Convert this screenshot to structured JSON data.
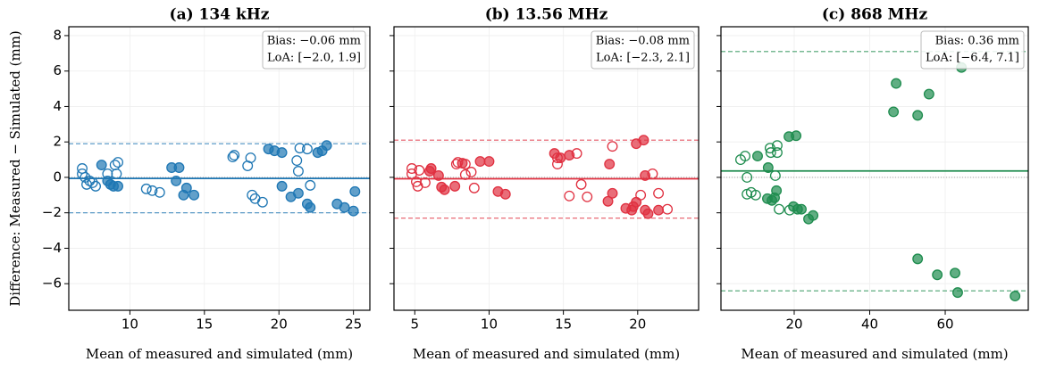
{
  "y_label": "Difference: Measured − Simulated (mm)",
  "chart_data": [
    {
      "type": "scatter",
      "title": "(a) 134 kHz",
      "x_label": "Mean of measured and simulated (mm)",
      "color": "#1f77b4",
      "xlim": [
        5.9,
        26.1
      ],
      "xticks": [
        10,
        15,
        20,
        25
      ],
      "ylim": [
        -7.5,
        8.5
      ],
      "yticks": [
        {
          "value": -6,
          "label": "−6"
        },
        {
          "value": -4,
          "label": "−4"
        },
        {
          "value": -2,
          "label": "−2"
        },
        0,
        2,
        4,
        6,
        8
      ],
      "grid": true,
      "bias": -0.06,
      "loa": [
        -2.0,
        1.9
      ],
      "annotation": [
        "Bias: −0.06 mm",
        "LoA: [−2.0, 1.9]"
      ],
      "series": [
        {
          "marker": "filled",
          "x": [
            8.1,
            8.5,
            8.7,
            8.9,
            9.2,
            12.8,
            13.3,
            13.1,
            13.6,
            13.8,
            14.3,
            19.3,
            19.7,
            20.2,
            20.2,
            20.8,
            21.3,
            21.9,
            22.1,
            22.6,
            22.9,
            23.2,
            23.9,
            24.4,
            25.0,
            25.1
          ],
          "values": [
            0.7,
            -0.2,
            -0.4,
            -0.5,
            -0.5,
            0.55,
            0.55,
            -0.2,
            -1.0,
            -0.6,
            -1.0,
            1.6,
            1.5,
            1.4,
            -0.5,
            -1.1,
            -0.9,
            -1.5,
            -1.7,
            1.4,
            1.5,
            1.8,
            -1.5,
            -1.7,
            -1.9,
            -0.8
          ]
        },
        {
          "marker": "open",
          "x": [
            6.8,
            6.8,
            7.0,
            7.1,
            7.3,
            7.5,
            7.7,
            8.5,
            9.0,
            9.2,
            9.1,
            11.1,
            11.5,
            12.0,
            16.9,
            17.0,
            17.9,
            18.1,
            18.2,
            18.4,
            18.9,
            21.4,
            21.2,
            21.3,
            21.9,
            22.1
          ],
          "values": [
            0.5,
            0.2,
            0,
            -0.4,
            -0.2,
            -0.3,
            -0.5,
            0.2,
            0.7,
            0.85,
            0.2,
            -0.65,
            -0.75,
            -0.85,
            1.15,
            1.25,
            0.65,
            1.1,
            -1.0,
            -1.2,
            -1.4,
            1.65,
            0.95,
            0.35,
            1.6,
            -0.45
          ]
        }
      ]
    },
    {
      "type": "scatter",
      "title": "(b) 13.56 MHz",
      "x_label": "Mean of measured and simulated (mm)",
      "color": "#e03040",
      "xlim": [
        3.6,
        24.1
      ],
      "xticks": [
        5,
        10,
        15,
        20
      ],
      "ylim": [
        -7.5,
        8.5
      ],
      "yticks": [
        -6,
        -4,
        -2,
        0,
        2,
        4,
        6,
        8
      ],
      "grid": true,
      "bias": -0.08,
      "loa": [
        -2.3,
        2.1
      ],
      "annotation": [
        "Bias: −0.08 mm",
        "LoA: [−2.3, 2.1]"
      ],
      "series": [
        {
          "marker": "filled",
          "x": [
            6.1,
            6.0,
            6.6,
            6.8,
            7.0,
            7.7,
            8.2,
            9.4,
            10.0,
            10.6,
            11.1,
            14.4,
            14.8,
            15.4,
            18.0,
            18.1,
            18.3,
            19.2,
            19.6,
            19.7,
            19.9,
            19.9,
            20.4,
            20.5,
            20.5,
            20.7,
            21.4
          ],
          "values": [
            0.5,
            0.35,
            0.1,
            -0.55,
            -0.7,
            -0.5,
            0.8,
            0.9,
            0.9,
            -0.8,
            -0.95,
            1.35,
            1.1,
            1.25,
            -1.35,
            0.75,
            -0.9,
            -1.75,
            -1.85,
            -1.65,
            -1.4,
            1.9,
            2.1,
            0.1,
            -1.85,
            -2.05,
            -1.85
          ]
        },
        {
          "marker": "open",
          "x": [
            4.8,
            4.8,
            5.1,
            5.2,
            5.3,
            5.7,
            7.8,
            7.9,
            8.4,
            8.4,
            8.8,
            9.0,
            14.6,
            14.6,
            15.4,
            15.9,
            16.2,
            16.6,
            18.3,
            20.2,
            21.0,
            21.4,
            22.0
          ],
          "values": [
            0.5,
            0.2,
            -0.25,
            -0.5,
            0.4,
            -0.3,
            0.75,
            0.85,
            0.75,
            0.15,
            0.3,
            -0.6,
            0.75,
            1.1,
            -1.05,
            1.35,
            -0.4,
            -1.1,
            1.75,
            -1.0,
            0.2,
            -0.9,
            -1.8
          ]
        }
      ]
    },
    {
      "type": "scatter",
      "title": "(c) 868 MHz",
      "x_label": "Mean of measured and simulated (mm)",
      "color": "#1e8c4e",
      "xlim": [
        0.6,
        82
      ],
      "xticks": [
        20,
        40,
        60
      ],
      "ylim": [
        -7.5,
        8.5
      ],
      "yticks": [
        -6,
        -4,
        -2,
        0,
        2,
        4,
        6,
        8
      ],
      "grid": true,
      "bias": 0.36,
      "loa": [
        -6.4,
        7.1
      ],
      "annotation": [
        "Bias: 0.36 mm",
        "LoA: [−6.4, 7.1]"
      ],
      "series": [
        {
          "marker": "filled",
          "x": [
            10.3,
            13.1,
            14.1,
            12.9,
            14.8,
            15.3,
            18.6,
            20.5,
            19.8,
            20.9,
            21.9,
            23.8,
            25.0,
            46.3,
            47.0,
            52.7,
            55.7,
            64.3,
            52.7,
            57.9,
            62.6,
            63.3,
            78.5
          ],
          "values": [
            1.2,
            0.55,
            -1.3,
            -1.2,
            -1.15,
            -0.75,
            2.3,
            2.35,
            -1.65,
            -1.8,
            -1.8,
            -2.35,
            -2.15,
            3.7,
            5.3,
            3.5,
            4.7,
            6.2,
            -4.6,
            -5.5,
            -5.4,
            -6.5,
            -6.7
          ]
        },
        {
          "marker": "open",
          "x": [
            5.8,
            7.0,
            7.5,
            7.5,
            8.6,
            9.8,
            13.6,
            13.8,
            15.5,
            15.5,
            15.0,
            16.0,
            18.8
          ],
          "values": [
            1.0,
            1.2,
            0,
            -0.95,
            -0.85,
            -1.0,
            1.65,
            1.4,
            1.8,
            1.4,
            0.1,
            -1.8,
            -1.85
          ]
        }
      ]
    }
  ]
}
